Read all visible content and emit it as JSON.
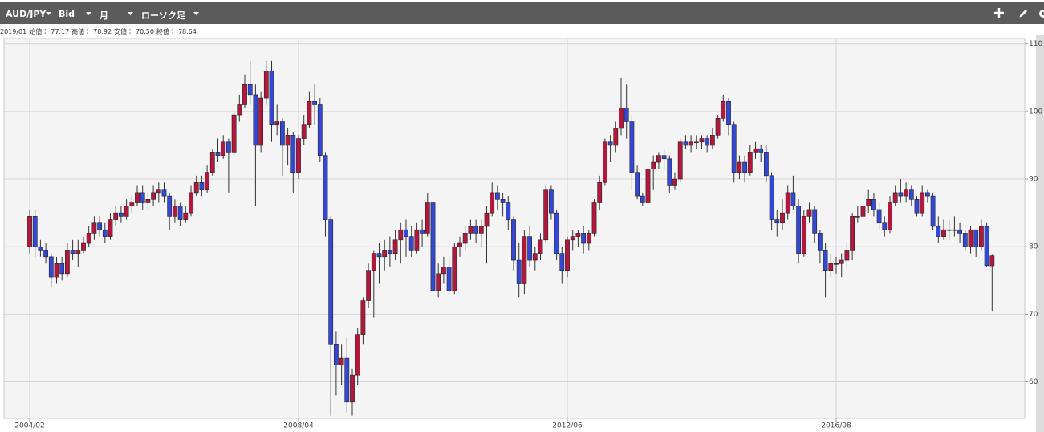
{
  "toolbar": {
    "symbol": "AUD/JPY",
    "price": "Bid",
    "period": "月",
    "style": "ローソク足"
  },
  "info": {
    "date": "2019/01",
    "labels": [
      "始値：",
      "高値：",
      "安値：",
      "終値："
    ],
    "values": [
      "77.17",
      "78.92",
      "70.50",
      "78.64"
    ]
  },
  "chart_data": {
    "type": "candlestick",
    "categories": [
      "2004/02",
      null,
      null,
      null,
      null,
      null,
      null,
      null,
      null,
      null,
      null,
      null,
      null,
      null,
      null,
      null,
      null,
      null,
      null,
      null,
      null,
      null,
      null,
      null,
      null,
      null,
      null,
      null,
      null,
      null,
      null,
      null,
      null,
      null,
      null,
      null,
      null,
      null,
      null,
      null,
      null,
      null,
      null,
      null,
      null,
      null,
      null,
      null,
      null,
      null,
      "2008/04",
      null,
      null,
      null,
      null,
      null,
      null,
      null,
      null,
      null,
      null,
      null,
      null,
      null,
      null,
      null,
      null,
      null,
      null,
      null,
      null,
      null,
      null,
      null,
      null,
      null,
      null,
      null,
      null,
      null,
      null,
      null,
      null,
      null,
      null,
      null,
      null,
      null,
      null,
      null,
      null,
      null,
      null,
      null,
      null,
      null,
      null,
      null,
      null,
      null,
      "2012/06",
      null,
      null,
      null,
      null,
      null,
      null,
      null,
      null,
      null,
      null,
      null,
      null,
      null,
      null,
      null,
      null,
      null,
      null,
      null,
      null,
      null,
      null,
      null,
      null,
      null,
      null,
      null,
      null,
      null,
      null,
      null,
      null,
      null,
      null,
      null,
      null,
      null,
      null,
      null,
      null,
      null,
      null,
      null,
      null,
      null,
      null,
      null,
      null,
      null,
      "2016/08",
      null,
      null,
      null,
      null,
      null,
      null,
      null,
      null,
      null,
      null,
      null,
      null,
      null,
      null,
      null,
      null,
      null,
      null,
      null,
      null,
      null,
      null,
      null,
      null,
      null,
      null,
      null,
      null,
      null
    ],
    "open": [
      80.0,
      84.5,
      80.0,
      79.5,
      78.5,
      75.5,
      77.5,
      76.0,
      79.5,
      79.0,
      79.5,
      80.5,
      82.0,
      83.5,
      82.5,
      81.5,
      84.0,
      85.0,
      84.5,
      86.0,
      86.5,
      88.0,
      86.5,
      87.0,
      88.0,
      88.5,
      87.5,
      84.5,
      86.0,
      84.0,
      85.0,
      88.0,
      89.5,
      88.5,
      91.0,
      94.0,
      93.5,
      95.5,
      94.0,
      99.5,
      101.0,
      104.0,
      102.5,
      95.0,
      102.0,
      106.0,
      98.0,
      98.5,
      95.0,
      96.5,
      91.0,
      96.0,
      98.0,
      101.5,
      101.0,
      93.5,
      84.0,
      65.5,
      62.5,
      63.5,
      57.0,
      61.0,
      67.0,
      72.0,
      76.5,
      79.0,
      78.5,
      79.5,
      79.0,
      81.0,
      82.5,
      81.5,
      79.5,
      82.5,
      82.0,
      86.5,
      73.5,
      76.0,
      77.0,
      73.5,
      80.0,
      80.5,
      82.0,
      83.0,
      82.0,
      83.0,
      85.0,
      88.0,
      87.0,
      86.5,
      84.0,
      78.0,
      74.5,
      81.5,
      78.0,
      79.0,
      81.0,
      88.5,
      85.0,
      79.0,
      76.5,
      81.0,
      81.5,
      82.0,
      80.5,
      82.0,
      86.5,
      89.5,
      95.5,
      95.0,
      97.5,
      100.5,
      98.5,
      91.0,
      87.5,
      86.5,
      91.5,
      92.5,
      93.5,
      93.0,
      89.0,
      90.0,
      95.5,
      95.0,
      95.5,
      95.5,
      96.0,
      95.0,
      96.5,
      99.0,
      101.5,
      98.0,
      91.0,
      92.5,
      91.0,
      94.0,
      94.5,
      94.0,
      90.5,
      84.0,
      83.5,
      85.0,
      88.0,
      86.0,
      79.0,
      84.5,
      85.5,
      82.0,
      79.5,
      76.5,
      77.5,
      77.5,
      78.0,
      79.5,
      84.5,
      84.5,
      86.0,
      87.0,
      85.5,
      83.5,
      82.5,
      86.5,
      88.0,
      87.5,
      88.5,
      87.0,
      85.0,
      88.0,
      87.5,
      83.0,
      81.5,
      82.5,
      82.5,
      82.5,
      82.0,
      80.0,
      82.5,
      80.0,
      83.0,
      77.17
    ],
    "high": [
      85.5,
      85.5,
      81.0,
      80.5,
      79.0,
      78.5,
      78.5,
      80.5,
      81.0,
      81.0,
      81.5,
      83.0,
      84.5,
      84.5,
      83.5,
      85.0,
      86.0,
      86.0,
      87.0,
      87.5,
      89.0,
      89.0,
      88.0,
      89.0,
      89.5,
      89.5,
      88.0,
      87.0,
      86.5,
      86.0,
      89.0,
      90.5,
      90.5,
      92.0,
      94.5,
      96.0,
      96.5,
      96.0,
      100.0,
      102.5,
      105.5,
      107.5,
      104.0,
      103.0,
      107.5,
      107.5,
      101.0,
      99.0,
      97.5,
      97.0,
      96.5,
      99.5,
      103.0,
      104.0,
      102.0,
      94.0,
      84.5,
      67.5,
      65.5,
      66.5,
      62.0,
      68.0,
      72.5,
      77.5,
      79.5,
      80.5,
      81.0,
      81.5,
      82.5,
      83.5,
      84.0,
      83.0,
      83.5,
      84.0,
      88.0,
      88.0,
      77.5,
      78.5,
      78.5,
      80.5,
      81.5,
      83.0,
      84.0,
      84.0,
      84.0,
      86.0,
      89.5,
      89.0,
      88.0,
      87.5,
      84.5,
      80.5,
      82.5,
      83.0,
      80.0,
      82.0,
      89.0,
      89.0,
      85.5,
      80.0,
      81.5,
      82.5,
      82.5,
      83.0,
      82.5,
      87.0,
      90.5,
      96.0,
      96.5,
      98.5,
      105.0,
      104.0,
      99.5,
      92.0,
      88.0,
      92.0,
      93.5,
      94.0,
      94.5,
      93.5,
      91.0,
      96.0,
      96.5,
      96.5,
      96.5,
      96.5,
      96.5,
      97.5,
      99.5,
      102.5,
      102.0,
      98.5,
      93.5,
      93.5,
      95.0,
      95.5,
      95.0,
      95.0,
      91.0,
      85.5,
      87.0,
      89.0,
      90.5,
      87.0,
      85.5,
      86.5,
      86.0,
      82.5,
      80.5,
      79.0,
      78.5,
      79.0,
      80.5,
      85.0,
      86.0,
      86.5,
      88.5,
      88.0,
      86.5,
      84.5,
      87.5,
      89.0,
      90.0,
      89.5,
      89.0,
      87.5,
      89.0,
      88.5,
      88.0,
      84.5,
      84.0,
      84.0,
      84.5,
      83.5,
      82.5,
      83.0,
      82.5,
      84.0,
      83.5,
      78.92
    ],
    "low": [
      79.0,
      78.5,
      78.5,
      77.5,
      74.0,
      74.5,
      75.0,
      75.5,
      78.0,
      77.0,
      79.0,
      80.0,
      81.0,
      81.5,
      80.5,
      81.0,
      83.0,
      83.5,
      84.0,
      85.0,
      86.0,
      85.5,
      85.5,
      86.0,
      86.5,
      86.5,
      82.5,
      83.5,
      83.0,
      83.5,
      84.5,
      87.5,
      87.5,
      88.0,
      90.5,
      92.5,
      93.0,
      88.0,
      93.5,
      98.5,
      100.5,
      101.0,
      86.0,
      94.0,
      101.0,
      95.5,
      96.5,
      90.5,
      92.0,
      88.0,
      90.0,
      95.0,
      97.5,
      98.0,
      92.5,
      81.5,
      55.0,
      58.0,
      59.5,
      55.5,
      55.0,
      59.5,
      65.5,
      71.0,
      69.5,
      74.5,
      76.5,
      77.0,
      78.0,
      77.5,
      78.5,
      78.5,
      79.0,
      80.0,
      81.5,
      72.0,
      72.5,
      74.5,
      73.0,
      73.0,
      78.5,
      79.5,
      81.0,
      80.5,
      80.0,
      77.5,
      84.5,
      85.5,
      84.5,
      82.5,
      76.5,
      72.5,
      73.0,
      77.0,
      76.5,
      78.0,
      80.5,
      84.0,
      78.0,
      74.5,
      75.5,
      79.5,
      80.0,
      79.0,
      79.5,
      81.5,
      85.5,
      89.0,
      92.5,
      94.0,
      96.5,
      96.0,
      88.5,
      87.0,
      86.0,
      86.0,
      88.5,
      91.5,
      91.5,
      88.0,
      88.5,
      89.5,
      94.5,
      94.0,
      94.5,
      94.5,
      94.0,
      94.5,
      96.0,
      98.5,
      96.5,
      89.5,
      90.0,
      89.5,
      90.5,
      93.0,
      92.5,
      89.5,
      82.5,
      81.5,
      82.5,
      84.0,
      85.5,
      77.5,
      78.5,
      83.5,
      80.5,
      77.5,
      72.5,
      75.5,
      76.0,
      75.5,
      77.0,
      78.0,
      83.5,
      83.5,
      85.0,
      84.5,
      82.5,
      81.5,
      82.0,
      86.0,
      86.5,
      86.5,
      86.0,
      84.5,
      84.5,
      86.5,
      82.5,
      80.5,
      81.0,
      81.0,
      81.5,
      80.5,
      79.5,
      79.0,
      78.5,
      79.5,
      77.0,
      70.5
    ],
    "close": [
      84.5,
      80.0,
      79.5,
      78.5,
      75.5,
      77.5,
      76.0,
      79.5,
      79.0,
      79.5,
      80.5,
      82.0,
      83.5,
      82.5,
      81.5,
      84.0,
      85.0,
      84.5,
      86.0,
      86.5,
      88.0,
      86.5,
      87.0,
      88.0,
      88.5,
      87.5,
      84.5,
      86.0,
      84.0,
      85.0,
      88.0,
      89.5,
      88.5,
      91.0,
      94.0,
      93.5,
      95.5,
      94.0,
      99.5,
      101.0,
      104.0,
      102.5,
      95.0,
      102.0,
      106.0,
      98.0,
      98.5,
      95.0,
      96.5,
      91.0,
      96.0,
      98.0,
      101.5,
      101.0,
      93.5,
      84.0,
      65.5,
      62.5,
      63.5,
      57.0,
      61.0,
      67.0,
      72.0,
      76.5,
      79.0,
      78.5,
      79.5,
      79.0,
      81.0,
      82.5,
      81.5,
      79.5,
      82.5,
      82.0,
      86.5,
      73.5,
      76.0,
      77.0,
      73.5,
      80.0,
      80.5,
      82.0,
      83.0,
      82.0,
      83.0,
      85.0,
      88.0,
      87.0,
      86.5,
      84.0,
      78.0,
      74.5,
      81.5,
      78.0,
      79.0,
      81.0,
      88.5,
      85.0,
      79.0,
      76.5,
      81.0,
      81.5,
      82.0,
      80.5,
      82.0,
      86.5,
      89.5,
      95.5,
      95.0,
      97.5,
      100.5,
      98.5,
      91.0,
      87.5,
      86.5,
      91.5,
      92.5,
      93.5,
      93.0,
      89.0,
      90.0,
      95.5,
      95.0,
      95.5,
      95.5,
      96.0,
      95.0,
      96.5,
      99.0,
      101.5,
      98.0,
      91.0,
      92.5,
      91.0,
      94.0,
      94.5,
      94.0,
      90.5,
      84.0,
      83.5,
      85.0,
      88.0,
      86.0,
      79.0,
      84.5,
      85.5,
      82.0,
      79.5,
      76.5,
      77.5,
      77.5,
      78.0,
      79.5,
      84.5,
      84.5,
      86.0,
      87.0,
      85.5,
      83.5,
      82.5,
      86.5,
      88.0,
      87.5,
      88.5,
      87.0,
      85.0,
      88.0,
      87.5,
      83.0,
      81.5,
      82.5,
      82.5,
      82.5,
      82.0,
      80.0,
      82.5,
      80.0,
      83.0,
      77.2,
      78.64
    ],
    "up_color": "#b3173c",
    "down_color": "#3349d6",
    "ylim": [
      54.6,
      110.8
    ],
    "yticks": [
      60,
      70,
      80,
      90,
      100,
      110
    ],
    "grid": true
  }
}
